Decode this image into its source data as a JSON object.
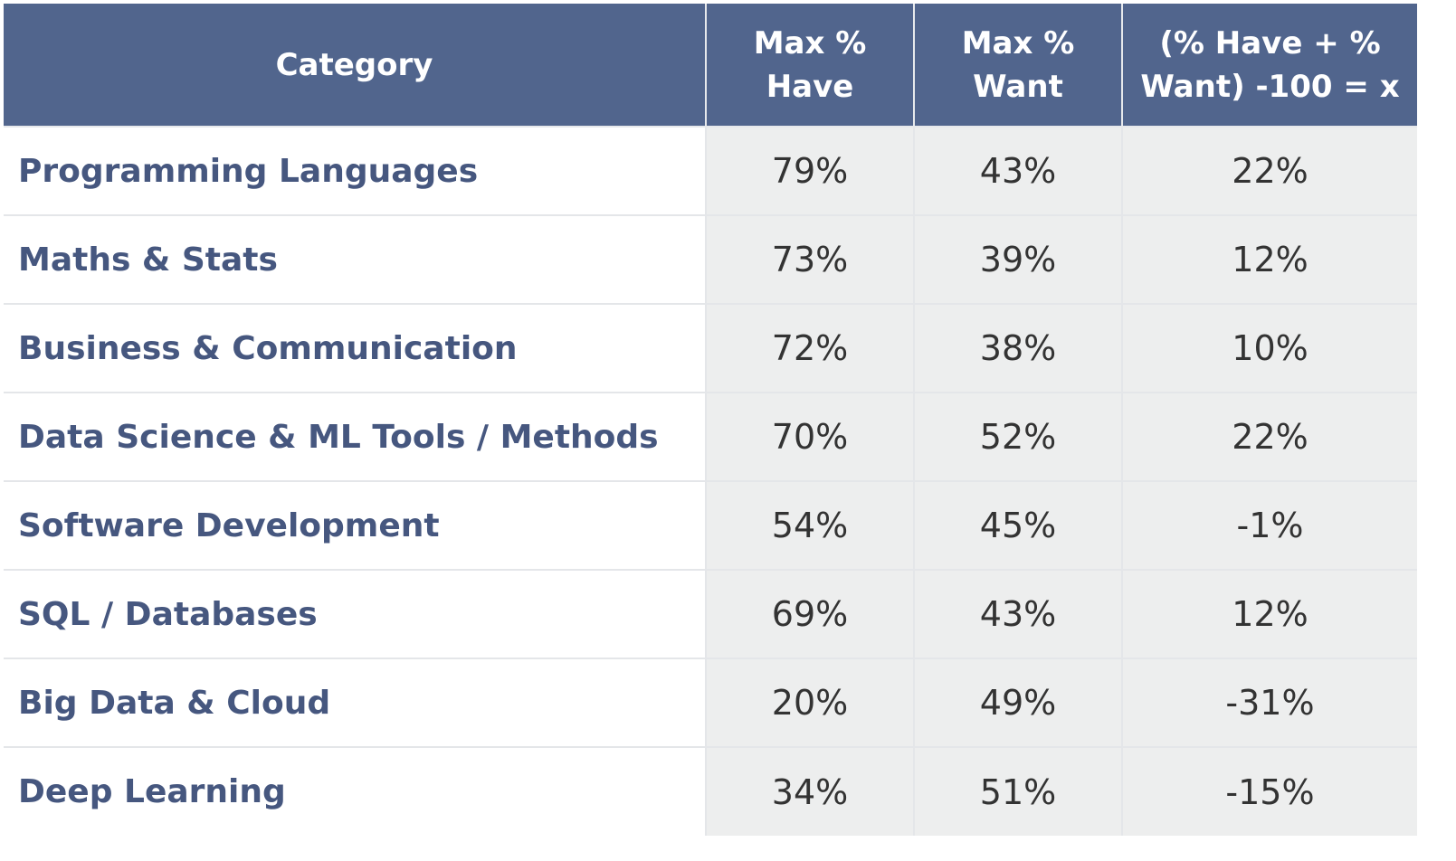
{
  "table": {
    "headers": [
      "Category",
      "Max % Have",
      "Max % Want",
      "(% Have + % Want) -100 = x"
    ],
    "rows": [
      {
        "category": "Programming Languages",
        "have": "79%",
        "want": "43%",
        "x": "22%"
      },
      {
        "category": "Maths & Stats",
        "have": "73%",
        "want": "39%",
        "x": "12%"
      },
      {
        "category": "Business & Communication",
        "have": "72%",
        "want": "38%",
        "x": "10%"
      },
      {
        "category": "Data Science & ML Tools / Methods",
        "have": "70%",
        "want": "52%",
        "x": "22%"
      },
      {
        "category": "Software Development",
        "have": "54%",
        "want": "45%",
        "x": "-1%"
      },
      {
        "category": "SQL / Databases",
        "have": "69%",
        "want": "43%",
        "x": "12%"
      },
      {
        "category": "Big Data & Cloud",
        "have": "20%",
        "want": "49%",
        "x": "-31%"
      },
      {
        "category": "Deep Learning",
        "have": "34%",
        "want": "51%",
        "x": "-15%"
      }
    ]
  },
  "colors": {
    "header_bg": "#51658d",
    "header_text": "#ffffff",
    "category_text": "#46577f",
    "value_bg": "#edeeee",
    "value_text": "#333333"
  }
}
